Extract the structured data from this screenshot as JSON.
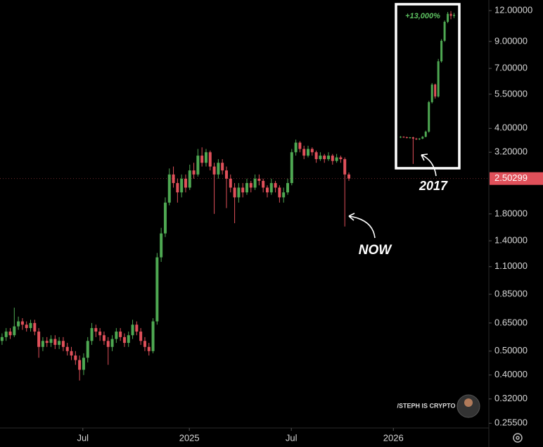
{
  "chart_data": [
    {
      "type": "candlestick",
      "log_scale": true,
      "up_color": "#4ea852",
      "down_color": "#e0505a",
      "ylim": [
        0.244,
        13.25
      ],
      "xlim": [
        -0.5,
        119.3
      ],
      "yticks": [
        {
          "value": 12,
          "label": "12.00000"
        },
        {
          "value": 9,
          "label": "9.00000"
        },
        {
          "value": 7,
          "label": "7.00000"
        },
        {
          "value": 5.5,
          "label": "5.50000"
        },
        {
          "value": 4,
          "label": "4.00000"
        },
        {
          "value": 3.2,
          "label": "3.20000"
        },
        {
          "value": 1.8,
          "label": "1.80000"
        },
        {
          "value": 1.4,
          "label": "1.40000"
        },
        {
          "value": 1.1,
          "label": "1.10000"
        },
        {
          "value": 0.85,
          "label": "0.85000"
        },
        {
          "value": 0.65,
          "label": "0.65000"
        },
        {
          "value": 0.5,
          "label": "0.50000"
        },
        {
          "value": 0.4,
          "label": "0.40000"
        },
        {
          "value": 0.32,
          "label": "0.32000"
        },
        {
          "value": 0.255,
          "label": "0.25500"
        }
      ],
      "xticks": [
        {
          "value": 19.8,
          "label": "Jul"
        },
        {
          "value": 45.9,
          "label": "2025"
        },
        {
          "value": 70.9,
          "label": "Jul"
        },
        {
          "value": 95.9,
          "label": "2026"
        }
      ],
      "current_price": 2.50299,
      "annotation": "NOW",
      "watermark": "/STEPH IS CRYPTO",
      "x": [
        0,
        1,
        2,
        3,
        4,
        5,
        6,
        7,
        8,
        9,
        10,
        11,
        12,
        13,
        14,
        15,
        16,
        17,
        18,
        19,
        20,
        21,
        22,
        23,
        24,
        25,
        26,
        27,
        28,
        29,
        30,
        31,
        32,
        33,
        34,
        35,
        36,
        37,
        38,
        39,
        40,
        41,
        42,
        43,
        44,
        45,
        46,
        47,
        48,
        49,
        50,
        51,
        52,
        53,
        54,
        55,
        56,
        57,
        58,
        59,
        60,
        61,
        62,
        63,
        64,
        65,
        66,
        67,
        68,
        69,
        70,
        71,
        72,
        73,
        74,
        75,
        76,
        77,
        78,
        79,
        80,
        81,
        82,
        83,
        84,
        85
      ],
      "open": [
        0.55,
        0.57,
        0.6,
        0.58,
        0.63,
        0.66,
        0.64,
        0.62,
        0.65,
        0.6,
        0.52,
        0.55,
        0.54,
        0.56,
        0.53,
        0.55,
        0.52,
        0.5,
        0.48,
        0.46,
        0.42,
        0.47,
        0.55,
        0.62,
        0.6,
        0.58,
        0.55,
        0.52,
        0.56,
        0.6,
        0.57,
        0.54,
        0.58,
        0.64,
        0.6,
        0.55,
        0.52,
        0.5,
        0.66,
        1.2,
        1.5,
        2.0,
        2.6,
        2.4,
        2.2,
        2.5,
        2.3,
        2.7,
        2.6,
        3.1,
        2.9,
        3.2,
        2.8,
        2.6,
        2.9,
        2.7,
        2.5,
        2.3,
        2.1,
        2.3,
        2.2,
        2.4,
        2.3,
        2.5,
        2.45,
        2.3,
        2.2,
        2.4,
        2.3,
        2.1,
        2.2,
        2.4,
        3.2,
        3.5,
        3.3,
        3.1,
        3.3,
        3.2,
        3.0,
        3.1,
        3.0,
        3.1,
        2.95,
        3.05,
        3.0,
        2.6
      ],
      "high": [
        0.59,
        0.62,
        0.62,
        0.75,
        0.69,
        0.68,
        0.66,
        0.67,
        0.67,
        0.62,
        0.57,
        0.57,
        0.58,
        0.58,
        0.57,
        0.57,
        0.54,
        0.52,
        0.5,
        0.48,
        0.49,
        0.57,
        0.65,
        0.64,
        0.62,
        0.6,
        0.57,
        0.58,
        0.62,
        0.62,
        0.59,
        0.6,
        0.67,
        0.66,
        0.62,
        0.57,
        0.54,
        0.68,
        1.25,
        1.58,
        2.1,
        2.75,
        2.8,
        2.5,
        2.6,
        2.6,
        2.85,
        2.9,
        3.3,
        3.35,
        3.3,
        3.25,
        2.9,
        3.0,
        3.0,
        2.8,
        2.6,
        2.4,
        2.4,
        2.4,
        2.5,
        2.45,
        2.6,
        2.6,
        2.5,
        2.35,
        2.5,
        2.45,
        2.35,
        2.3,
        2.5,
        3.3,
        3.6,
        3.55,
        3.4,
        3.4,
        3.35,
        3.25,
        3.2,
        3.15,
        3.2,
        3.15,
        3.15,
        3.1,
        3.05,
        2.65
      ],
      "low": [
        0.53,
        0.55,
        0.56,
        0.57,
        0.61,
        0.61,
        0.6,
        0.6,
        0.58,
        0.47,
        0.5,
        0.52,
        0.52,
        0.51,
        0.51,
        0.5,
        0.48,
        0.46,
        0.44,
        0.38,
        0.4,
        0.45,
        0.53,
        0.57,
        0.55,
        0.53,
        0.44,
        0.5,
        0.54,
        0.55,
        0.52,
        0.52,
        0.56,
        0.58,
        0.53,
        0.5,
        0.48,
        0.49,
        0.64,
        1.15,
        1.45,
        1.95,
        2.3,
        2.0,
        2.1,
        2.2,
        2.25,
        2.5,
        2.55,
        2.8,
        2.8,
        2.7,
        1.8,
        2.5,
        2.6,
        1.9,
        2.2,
        1.65,
        2.0,
        2.1,
        2.15,
        2.2,
        2.25,
        2.35,
        2.2,
        2.1,
        2.15,
        2.2,
        2.0,
        2.0,
        2.15,
        2.35,
        3.1,
        3.2,
        3.0,
        3.05,
        3.1,
        2.9,
        2.95,
        2.9,
        2.95,
        2.85,
        2.9,
        2.9,
        1.6,
        2.45
      ],
      "close": [
        0.57,
        0.6,
        0.58,
        0.63,
        0.66,
        0.64,
        0.62,
        0.65,
        0.6,
        0.52,
        0.55,
        0.54,
        0.56,
        0.53,
        0.55,
        0.52,
        0.5,
        0.48,
        0.46,
        0.42,
        0.47,
        0.55,
        0.62,
        0.6,
        0.58,
        0.55,
        0.52,
        0.56,
        0.6,
        0.57,
        0.54,
        0.58,
        0.64,
        0.6,
        0.55,
        0.52,
        0.5,
        0.66,
        1.2,
        1.5,
        2.0,
        2.6,
        2.4,
        2.2,
        2.5,
        2.3,
        2.7,
        2.6,
        3.1,
        2.9,
        3.2,
        2.8,
        2.6,
        2.9,
        2.7,
        2.5,
        2.3,
        2.1,
        2.3,
        2.2,
        2.4,
        2.3,
        2.5,
        2.45,
        2.3,
        2.2,
        2.4,
        2.3,
        2.1,
        2.2,
        2.4,
        3.2,
        3.5,
        3.3,
        3.1,
        3.3,
        3.2,
        3.0,
        3.1,
        3.0,
        3.1,
        2.95,
        3.05,
        3.0,
        2.6,
        2.50299
      ]
    },
    {
      "type": "candlestick",
      "log_scale": true,
      "up_color": "#4ea852",
      "down_color": "#e0505a",
      "ylim": [
        0.33,
        170
      ],
      "xlim": [
        -1,
        18
      ],
      "annotation": "+13,000%",
      "label": "2017",
      "x": [
        0,
        1,
        2,
        3,
        4,
        5,
        6,
        7,
        8,
        9,
        10,
        11,
        12,
        13,
        14,
        15,
        16,
        17
      ],
      "open": [
        1,
        1.02,
        1.0,
        0.98,
        1.0,
        0.95,
        0.93,
        0.95,
        1.02,
        1.25,
        4.0,
        8,
        5,
        20,
        45,
        95,
        130,
        120
      ],
      "high": [
        1.05,
        1.04,
        1.03,
        1.01,
        1.02,
        0.98,
        0.97,
        1.05,
        1.3,
        4.2,
        8.5,
        8.3,
        22,
        48,
        100,
        140,
        145,
        135
      ],
      "low": [
        0.97,
        0.98,
        0.96,
        0.95,
        0.35,
        0.9,
        0.9,
        0.93,
        1.0,
        1.2,
        3.8,
        4.6,
        4.8,
        19,
        43,
        90,
        105,
        110
      ],
      "close": [
        1.02,
        1.0,
        0.98,
        1.0,
        0.95,
        0.93,
        0.95,
        1.02,
        1.25,
        4.0,
        8,
        5,
        20,
        45,
        95,
        130,
        120,
        125
      ]
    }
  ]
}
